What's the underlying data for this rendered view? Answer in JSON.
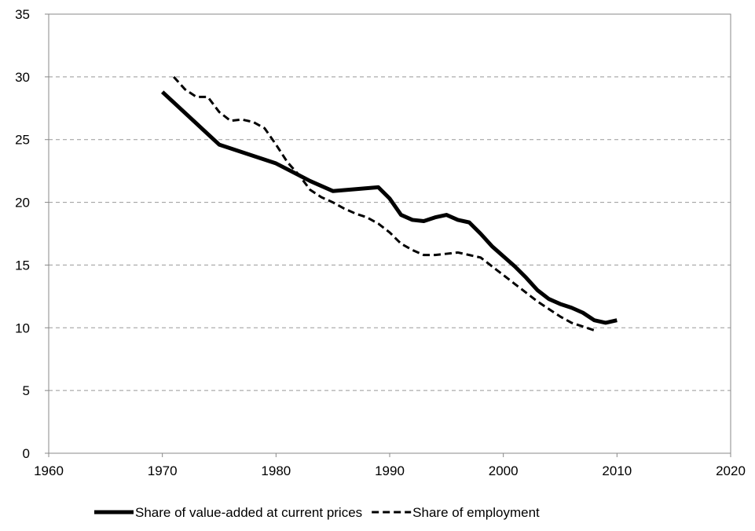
{
  "chart_data": {
    "type": "line",
    "xlim": [
      1960,
      2020
    ],
    "xticks": [
      1960,
      1970,
      1980,
      1990,
      2000,
      2010,
      2020
    ],
    "ylim": [
      0,
      35
    ],
    "yticks": [
      0,
      5,
      10,
      15,
      20,
      25,
      30,
      35
    ],
    "grid": true,
    "legend": "bottom",
    "series": [
      {
        "name": "Share of value-added at current prices",
        "color": "#000000",
        "style": "solid",
        "x": [
          1970,
          1975,
          1980,
          1983,
          1985,
          1989,
          1990,
          1991,
          1992,
          1993,
          1994,
          1995,
          1996,
          1997,
          1998,
          1999,
          2000,
          2001,
          2002,
          2003,
          2004,
          2005,
          2006,
          2007,
          2008,
          2009,
          2010
        ],
        "values": [
          28.8,
          24.6,
          23.1,
          21.7,
          20.9,
          21.2,
          20.3,
          19.0,
          18.6,
          18.5,
          18.8,
          19.0,
          18.6,
          18.4,
          17.5,
          16.5,
          15.7,
          14.9,
          14.0,
          13.0,
          12.3,
          11.9,
          11.6,
          11.2,
          10.6,
          10.4,
          10.6
        ]
      },
      {
        "name": "Share of employment",
        "color": "#000000",
        "style": "dashed",
        "x": [
          1971,
          1972,
          1973,
          1974,
          1975,
          1976,
          1977,
          1978,
          1979,
          1980,
          1981,
          1982,
          1983,
          1984,
          1985,
          1986,
          1987,
          1988,
          1989,
          1990,
          1991,
          1992,
          1993,
          1994,
          1995,
          1996,
          1997,
          1998,
          1999,
          2000,
          2001,
          2002,
          2003,
          2004,
          2005,
          2006,
          2007,
          2008
        ],
        "values": [
          30.0,
          29.0,
          28.4,
          28.4,
          27.2,
          26.5,
          26.6,
          26.4,
          25.9,
          24.6,
          23.2,
          22.2,
          21.0,
          20.4,
          20.0,
          19.5,
          19.1,
          18.8,
          18.3,
          17.6,
          16.7,
          16.2,
          15.8,
          15.8,
          15.9,
          16.0,
          15.8,
          15.6,
          14.9,
          14.2,
          13.5,
          12.8,
          12.1,
          11.5,
          10.9,
          10.4,
          10.1,
          9.8
        ]
      }
    ]
  }
}
